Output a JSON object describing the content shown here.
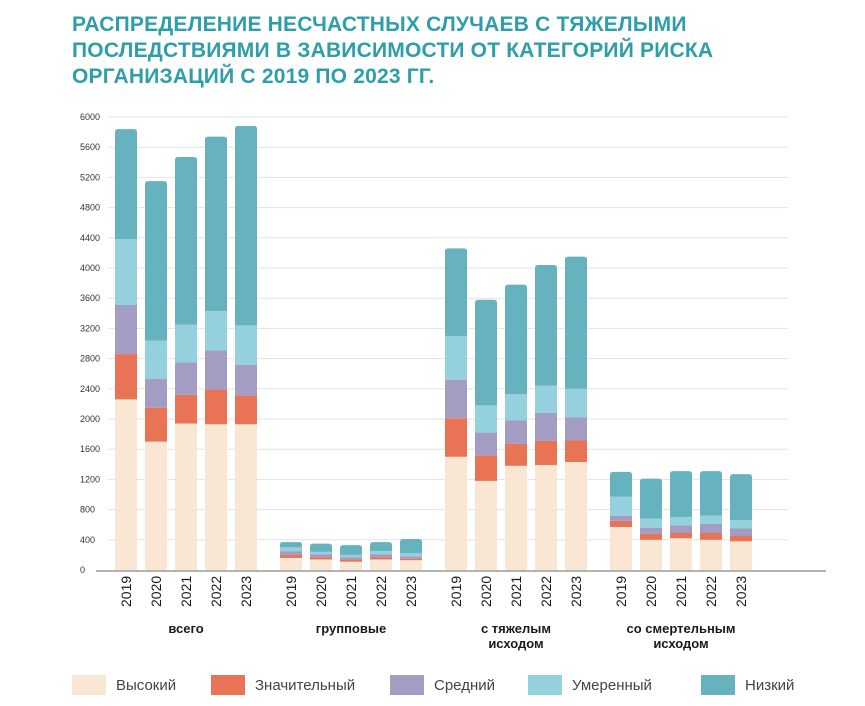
{
  "title_lines": [
    "РАСПРЕДЕЛЕНИЕ НЕСЧАСТНЫХ СЛУЧАЕВ С ТЯЖЕЛЫМИ",
    "ПОСЛЕДСТВИЯМИ В ЗАВИСИМОСТИ ОТ КАТЕГОРИЙ РИСКА",
    "ОРГАНИЗАЦИЙ С 2019 ПО 2023 ГГ."
  ],
  "chart_data": {
    "type": "bar",
    "stacked": true,
    "title": "РАСПРЕДЕЛЕНИЕ НЕСЧАСТНЫХ СЛУЧАЕВ С ТЯЖЕЛЫМИ ПОСЛЕДСТВИЯМИ В ЗАВИСИМОСТИ ОТ КАТЕГОРИЙ РИСКА ОРГАНИЗАЦИЙ С 2019 ПО 2023 ГГ.",
    "ylim": [
      0,
      6000
    ],
    "yticks": [
      0,
      400,
      800,
      1200,
      1600,
      2000,
      2400,
      2800,
      3200,
      3600,
      4000,
      4400,
      4800,
      5200,
      5600,
      6000
    ],
    "grid": true,
    "legend_position": "bottom",
    "groups": [
      {
        "label_lines": [
          "всего"
        ],
        "years": [
          "2019",
          "2020",
          "2021",
          "2022",
          "2023"
        ]
      },
      {
        "label_lines": [
          "групповые"
        ],
        "years": [
          "2019",
          "2020",
          "2021",
          "2022",
          "2023"
        ]
      },
      {
        "label_lines": [
          "с тяжелым",
          "исходом"
        ],
        "years": [
          "2019",
          "2020",
          "2021",
          "2022",
          "2023"
        ]
      },
      {
        "label_lines": [
          "со смертельным",
          "исходом"
        ],
        "years": [
          "2019",
          "2020",
          "2021",
          "2022",
          "2023"
        ]
      }
    ],
    "series": [
      {
        "name": "Высокий",
        "color": "#f9e6d3",
        "values": [
          [
            2260,
            1700,
            1940,
            1930,
            1930
          ],
          [
            160,
            140,
            110,
            140,
            130
          ],
          [
            1500,
            1180,
            1380,
            1390,
            1430
          ],
          [
            570,
            400,
            420,
            400,
            380
          ]
        ]
      },
      {
        "name": "Значительный",
        "color": "#e97355",
        "values": [
          [
            600,
            450,
            380,
            460,
            380
          ],
          [
            40,
            30,
            30,
            30,
            20
          ],
          [
            510,
            340,
            290,
            320,
            290
          ],
          [
            80,
            80,
            70,
            90,
            70
          ]
        ]
      },
      {
        "name": "Средний",
        "color": "#a39dc4",
        "values": [
          [
            650,
            380,
            430,
            520,
            410
          ],
          [
            50,
            40,
            30,
            40,
            30
          ],
          [
            510,
            300,
            310,
            370,
            300
          ],
          [
            70,
            80,
            100,
            120,
            100
          ]
        ]
      },
      {
        "name": "Умеренный",
        "color": "#94d1dc",
        "values": [
          [
            870,
            510,
            500,
            520,
            520
          ],
          [
            50,
            30,
            30,
            40,
            40
          ],
          [
            580,
            360,
            350,
            360,
            380
          ],
          [
            250,
            120,
            110,
            110,
            110
          ]
        ]
      },
      {
        "name": "Низкий",
        "color": "#66b2bf",
        "values": [
          [
            1460,
            2110,
            2220,
            2310,
            2640
          ],
          [
            70,
            110,
            130,
            120,
            190
          ],
          [
            1160,
            1400,
            1450,
            1600,
            1750
          ],
          [
            330,
            530,
            610,
            590,
            610
          ]
        ]
      }
    ]
  }
}
